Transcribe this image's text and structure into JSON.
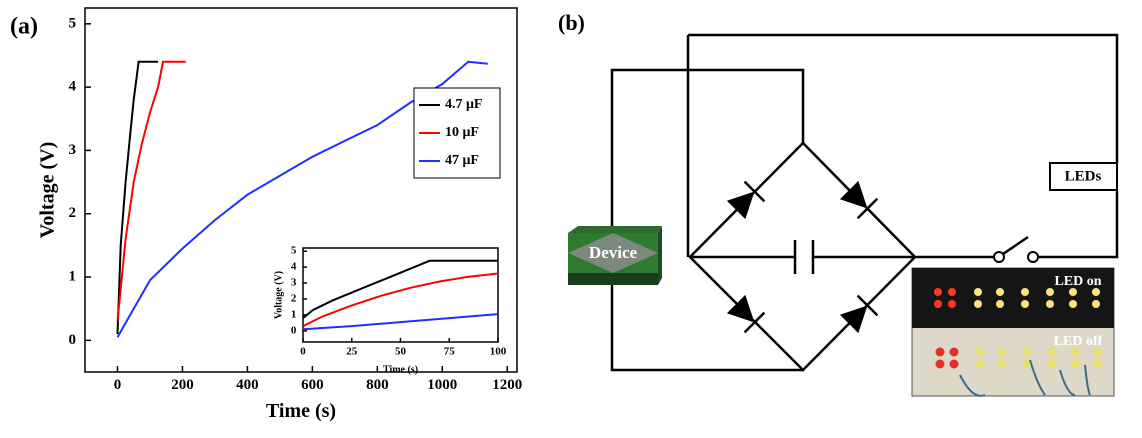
{
  "panel_labels": {
    "a": "(a)",
    "b": "(b)"
  },
  "chart_data": [
    {
      "type": "line",
      "xlabel": "Time (s)",
      "ylabel": "Voltage (V)",
      "xlim": [
        -100,
        1230
      ],
      "ylim": [
        -0.5,
        5.25
      ],
      "xticks": [
        0,
        200,
        400,
        600,
        800,
        1000,
        1200
      ],
      "yticks": [
        0,
        1,
        2,
        3,
        4,
        5
      ],
      "legend": "upper right",
      "series": [
        {
          "name": "4.7 μF",
          "color": "#000000",
          "x": [
            0,
            10,
            25,
            40,
            50,
            60,
            65,
            80,
            100,
            125
          ],
          "values": [
            0.1,
            1.5,
            2.5,
            3.3,
            3.8,
            4.2,
            4.4,
            4.4,
            4.4,
            4.4
          ]
        },
        {
          "name": "10 μF",
          "color": "#ff0000",
          "x": [
            0,
            25,
            50,
            75,
            100,
            125,
            140,
            170,
            210
          ],
          "values": [
            0.3,
            1.6,
            2.5,
            3.1,
            3.6,
            4.0,
            4.4,
            4.4,
            4.4
          ]
        },
        {
          "name": "47 μF",
          "color": "#1f2fff",
          "x": [
            0,
            50,
            100,
            200,
            300,
            400,
            500,
            600,
            700,
            800,
            900,
            1000,
            1080,
            1140
          ],
          "values": [
            0.05,
            0.5,
            0.95,
            1.45,
            1.9,
            2.3,
            2.6,
            2.9,
            3.15,
            3.4,
            3.75,
            4.05,
            4.4,
            4.37
          ]
        }
      ]
    },
    {
      "type": "line",
      "xlabel": "Time (s)",
      "ylabel": "Voltage (V)",
      "xlim": [
        0,
        100
      ],
      "ylim": [
        -0.7,
        5.2
      ],
      "xticks": [
        0,
        25,
        50,
        75,
        100
      ],
      "yticks": [
        0,
        1,
        2,
        3,
        4,
        5
      ],
      "series": [
        {
          "color": "#000000",
          "x": [
            0,
            5,
            15,
            25,
            35,
            45,
            55,
            65,
            75,
            85,
            100
          ],
          "values": [
            0.8,
            1.3,
            1.9,
            2.4,
            2.9,
            3.4,
            3.9,
            4.4,
            4.4,
            4.4,
            4.4
          ]
        },
        {
          "color": "#ff0000",
          "x": [
            0,
            10,
            25,
            40,
            55,
            70,
            85,
            100
          ],
          "values": [
            0.3,
            0.9,
            1.6,
            2.2,
            2.7,
            3.1,
            3.4,
            3.6
          ]
        },
        {
          "color": "#1f2fff",
          "x": [
            0,
            25,
            50,
            75,
            100
          ],
          "values": [
            0.1,
            0.3,
            0.55,
            0.8,
            1.05
          ]
        }
      ]
    }
  ],
  "diagram": {
    "device": "Device",
    "leds": "LEDs",
    "led_on": "LED on",
    "led_off": "LED off"
  }
}
